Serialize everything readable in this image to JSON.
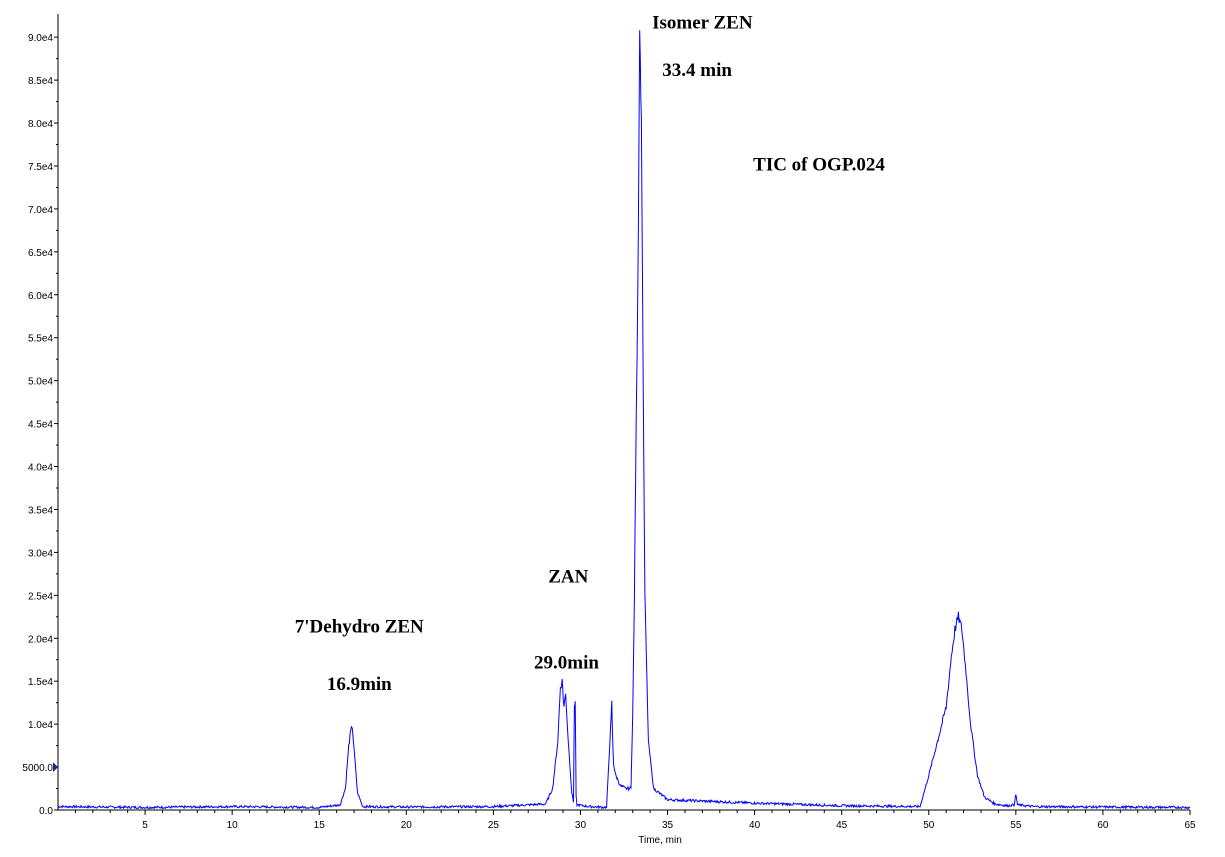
{
  "chart_data": {
    "type": "line",
    "title": "",
    "xlabel": "Time, min",
    "ylabel": "",
    "xlim": [
      0,
      65
    ],
    "ylim": [
      0,
      92000
    ],
    "x_ticks": [
      5,
      10,
      15,
      20,
      25,
      30,
      35,
      40,
      45,
      50,
      55,
      60,
      65
    ],
    "y_ticks": [
      {
        "value": 0,
        "label": "0.0"
      },
      {
        "value": 5000,
        "label": "5000.0"
      },
      {
        "value": 10000,
        "label": "1.0e4"
      },
      {
        "value": 15000,
        "label": "1.5e4"
      },
      {
        "value": 20000,
        "label": "2.0e4"
      },
      {
        "value": 25000,
        "label": "2.5e4"
      },
      {
        "value": 30000,
        "label": "3.0e4"
      },
      {
        "value": 35000,
        "label": "3.5e4"
      },
      {
        "value": 40000,
        "label": "4.0e4"
      },
      {
        "value": 45000,
        "label": "4.5e4"
      },
      {
        "value": 50000,
        "label": "5.0e4"
      },
      {
        "value": 55000,
        "label": "5.5e4"
      },
      {
        "value": 60000,
        "label": "6.0e4"
      },
      {
        "value": 65000,
        "label": "6.5e4"
      },
      {
        "value": 70000,
        "label": "7.0e4"
      },
      {
        "value": 75000,
        "label": "7.5e4"
      },
      {
        "value": 80000,
        "label": "8.0e4"
      },
      {
        "value": 85000,
        "label": "8.5e4"
      },
      {
        "value": 90000,
        "label": "9.0e4"
      }
    ],
    "grid": false,
    "line_color": "#0000ff",
    "series": [
      {
        "x": [
          0,
          5,
          10,
          15,
          16.2,
          16.5,
          16.7,
          16.8,
          16.9,
          17.0,
          17.2,
          17.5,
          20,
          25,
          28.0,
          28.4,
          28.7,
          28.85,
          28.95,
          29.05,
          29.15,
          29.3,
          29.5,
          29.6,
          29.65,
          29.7,
          29.75,
          29.8,
          30.5,
          31.5,
          31.8,
          31.85,
          31.9,
          32.0,
          32.3,
          32.6,
          32.9,
          33.0,
          33.1,
          33.2,
          33.3,
          33.35,
          33.4,
          33.5,
          33.6,
          33.7,
          33.9,
          34.2,
          35,
          40,
          45,
          49.5,
          50.0,
          50.5,
          51.0,
          51.3,
          51.5,
          51.7,
          51.9,
          52.1,
          52.4,
          52.8,
          53.2,
          53.8,
          54.5,
          54.9,
          55.0,
          55.1,
          56,
          60,
          65
        ],
        "y": [
          400,
          300,
          400,
          300,
          600,
          2500,
          7500,
          9000,
          9700,
          7000,
          2000,
          400,
          350,
          400,
          700,
          2500,
          8000,
          14500,
          15000,
          12000,
          13500,
          8000,
          2000,
          1000,
          12000,
          12500,
          1500,
          600,
          400,
          300,
          12500,
          8000,
          5500,
          4200,
          2800,
          2500,
          2500,
          11000,
          25000,
          45000,
          62000,
          75000,
          91000,
          80000,
          50000,
          25000,
          8000,
          2500,
          1200,
          800,
          500,
          400,
          4000,
          8000,
          12000,
          18000,
          21000,
          22500,
          21000,
          17000,
          10000,
          4000,
          1500,
          700,
          500,
          600,
          1800,
          600,
          400,
          350,
          300
        ]
      }
    ],
    "annotations": [
      {
        "text": "Isomer ZEN",
        "x": 37.0,
        "y": 91000
      },
      {
        "text": "33.4 min",
        "x": 36.7,
        "y": 85500
      },
      {
        "text": "TIC of OGP.024",
        "x": 43.7,
        "y": 74500
      },
      {
        "text": "ZAN",
        "x": 29.3,
        "y": 26500
      },
      {
        "text": "29.0min",
        "x": 29.2,
        "y": 16500
      },
      {
        "text": "7'Dehydro ZEN",
        "x": 17.3,
        "y": 20700
      },
      {
        "text": "16.9min",
        "x": 17.3,
        "y": 14000
      }
    ]
  }
}
